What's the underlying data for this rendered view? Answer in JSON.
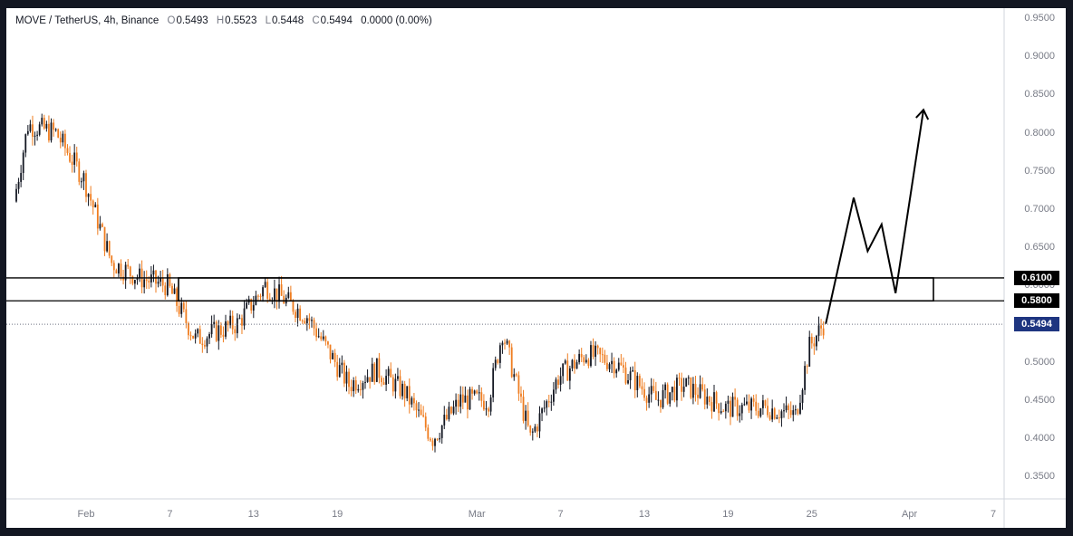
{
  "header": {
    "symbol": "MOVE / TetherUS, 4h, Binance",
    "o_label": "O",
    "o_value": "0.5493",
    "h_label": "H",
    "h_value": "0.5523",
    "l_label": "L",
    "l_value": "0.5448",
    "c_label": "C",
    "c_value": "0.5494",
    "change": "0.0000 (0.00%)"
  },
  "chart_data": {
    "type": "candlestick",
    "title": "MOVE / TetherUS, 4h, Binance",
    "ylim": [
      0.33,
      0.96
    ],
    "y_ticks": [
      "0.9500",
      "0.9000",
      "0.8500",
      "0.8000",
      "0.7500",
      "0.7000",
      "0.6500",
      "0.6000",
      "0.5500",
      "0.5000",
      "0.4500",
      "0.4000",
      "0.3500"
    ],
    "x_ticks": [
      "Feb",
      "7",
      "13",
      "19",
      "Mar",
      "7",
      "13",
      "19",
      "25",
      "Apr",
      "7"
    ],
    "key_closes": [
      {
        "date": "Jan 27",
        "close": 0.71
      },
      {
        "date": "Jan 28",
        "close": 0.81
      },
      {
        "date": "Jan 30",
        "close": 0.8
      },
      {
        "date": "Feb 1",
        "close": 0.74
      },
      {
        "date": "Feb 3",
        "close": 0.63
      },
      {
        "date": "Feb 5",
        "close": 0.61
      },
      {
        "date": "Feb 7",
        "close": 0.6
      },
      {
        "date": "Feb 9",
        "close": 0.53
      },
      {
        "date": "Feb 12",
        "close": 0.55
      },
      {
        "date": "Feb 14",
        "close": 0.6
      },
      {
        "date": "Feb 17",
        "close": 0.56
      },
      {
        "date": "Feb 20",
        "close": 0.47
      },
      {
        "date": "Feb 22",
        "close": 0.49
      },
      {
        "date": "Feb 24",
        "close": 0.46
      },
      {
        "date": "Feb 26",
        "close": 0.4
      },
      {
        "date": "Feb 28",
        "close": 0.45
      },
      {
        "date": "Mar 2",
        "close": 0.45
      },
      {
        "date": "Mar 3",
        "close": 0.54
      },
      {
        "date": "Mar 5",
        "close": 0.4
      },
      {
        "date": "Mar 7",
        "close": 0.48
      },
      {
        "date": "Mar 9",
        "close": 0.51
      },
      {
        "date": "Mar 11",
        "close": 0.5
      },
      {
        "date": "Mar 14",
        "close": 0.45
      },
      {
        "date": "Mar 16",
        "close": 0.47
      },
      {
        "date": "Mar 19",
        "close": 0.44
      },
      {
        "date": "Mar 22",
        "close": 0.44
      },
      {
        "date": "Mar 24",
        "close": 0.43
      },
      {
        "date": "Mar 25",
        "close": 0.52
      },
      {
        "date": "Mar 26",
        "close": 0.5494
      }
    ],
    "levels": [
      {
        "label": "0.6100",
        "value": 0.61
      },
      {
        "label": "0.5800",
        "value": 0.58
      }
    ],
    "last_price": {
      "label": "0.5494",
      "value": 0.5494
    },
    "projection": [
      {
        "date": "Mar 26",
        "value": 0.55
      },
      {
        "date": "Mar 28",
        "value": 0.715
      },
      {
        "date": "Mar 29",
        "value": 0.645
      },
      {
        "date": "Mar 30",
        "value": 0.68
      },
      {
        "date": "Mar 31",
        "value": 0.59
      },
      {
        "date": "Apr 2",
        "value": 0.83
      }
    ],
    "colors": {
      "up": "#131722",
      "down": "#ef7d20",
      "level_box": "#000000",
      "last_price_bg": "#1e3580",
      "level_tag_bg": "#000000",
      "projection": "#000000"
    }
  }
}
